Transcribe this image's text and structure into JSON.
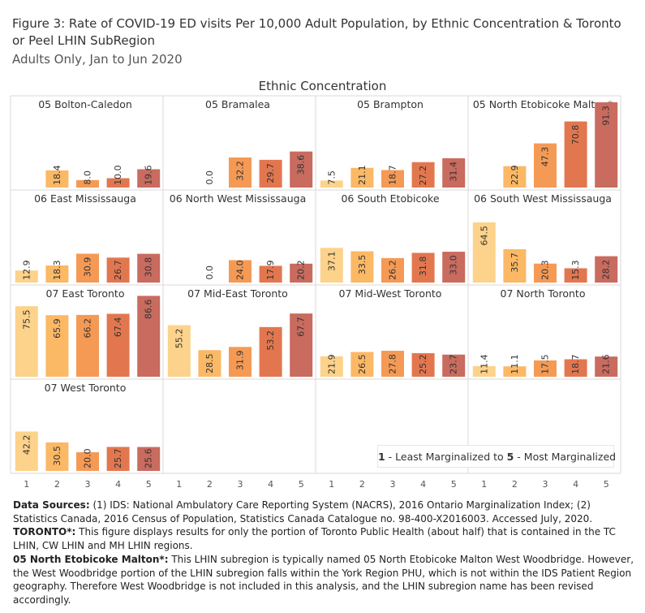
{
  "header": {
    "title": "Figure 3: Rate of COVID-19 ED visits Per 10,000 Adult Population, by Ethnic Concentration & Toronto or Peel LHIN SubRegion",
    "subtitle": "Adults Only, Jan to Jun 2020"
  },
  "legend": {
    "low_num": "1",
    "low_text": " - Least Marginalized to ",
    "high_num": "5",
    "high_text": " - Most Marginalized"
  },
  "footer": {
    "sources_label": "Data Sources:",
    "sources_text": " (1) IDS: National Ambulatory Care Reporting System (NACRS), 2016 Ontario Marginalization Index; (2) Statistics Canada, 2016 Census of Population, Statistics Canada Catalogue no. 98-400-X2016003. Accessed July, 2020.",
    "toronto_label": "TORONTO*:",
    "toronto_text": "  This figure displays results for only the portion of Toronto Public Health (about half) that is contained in the TC LHIN, CW LHIN and MH LHIN regions.",
    "malton_label": "05 North Etobicoke Malton*:",
    "malton_text": " This LHIN subregion is typically named 05 North Etobicoke Malton West Woodbridge. However, the West Woodbridge portion of the LHIN subregion falls within the York Region PHU, which is not within the IDS Patient Region geography.  Therefore West Woodbridge is not included in this analysis, and the LHIN subregion name has been revised accordingly."
  },
  "chart_data": {
    "type": "bar",
    "title": "Ethnic Concentration",
    "categories": [
      "1",
      "2",
      "3",
      "4",
      "5"
    ],
    "ylim": [
      0,
      95
    ],
    "colors": [
      "#fdd28a",
      "#fbb865",
      "#f59a55",
      "#e2774f",
      "#c96b5f"
    ],
    "panels": [
      {
        "name": "05 Bolton-Caledon",
        "values": [
          null,
          18.4,
          8.0,
          10.0,
          19.6
        ]
      },
      {
        "name": "05 Bramalea",
        "values": [
          null,
          0.0,
          32.2,
          29.7,
          38.6
        ]
      },
      {
        "name": "05 Brampton",
        "values": [
          7.5,
          21.1,
          18.7,
          27.2,
          31.4
        ]
      },
      {
        "name": "05 North Etobicoke Malton*",
        "values": [
          null,
          22.9,
          47.3,
          70.8,
          91.3
        ]
      },
      {
        "name": "06 East Mississauga",
        "values": [
          12.9,
          18.3,
          30.9,
          26.7,
          30.8
        ]
      },
      {
        "name": "06 North West Mississauga",
        "values": [
          null,
          0.0,
          24.0,
          17.9,
          20.2
        ]
      },
      {
        "name": "06 South Etobicoke",
        "values": [
          37.1,
          33.5,
          26.2,
          31.8,
          33.0
        ]
      },
      {
        "name": "06 South West Mississauga",
        "values": [
          64.5,
          35.7,
          20.3,
          15.3,
          28.2
        ]
      },
      {
        "name": "07 East Toronto",
        "values": [
          75.5,
          65.9,
          66.2,
          67.4,
          86.6
        ]
      },
      {
        "name": "07 Mid-East Toronto",
        "values": [
          55.2,
          28.5,
          31.9,
          53.2,
          67.7
        ]
      },
      {
        "name": "07 Mid-West Toronto",
        "values": [
          21.9,
          26.5,
          27.8,
          25.2,
          23.7
        ]
      },
      {
        "name": "07 North Toronto",
        "values": [
          11.4,
          11.1,
          17.5,
          18.7,
          21.6
        ]
      },
      {
        "name": "07 West Toronto",
        "values": [
          42.2,
          30.5,
          20.0,
          25.7,
          25.6
        ]
      }
    ]
  }
}
